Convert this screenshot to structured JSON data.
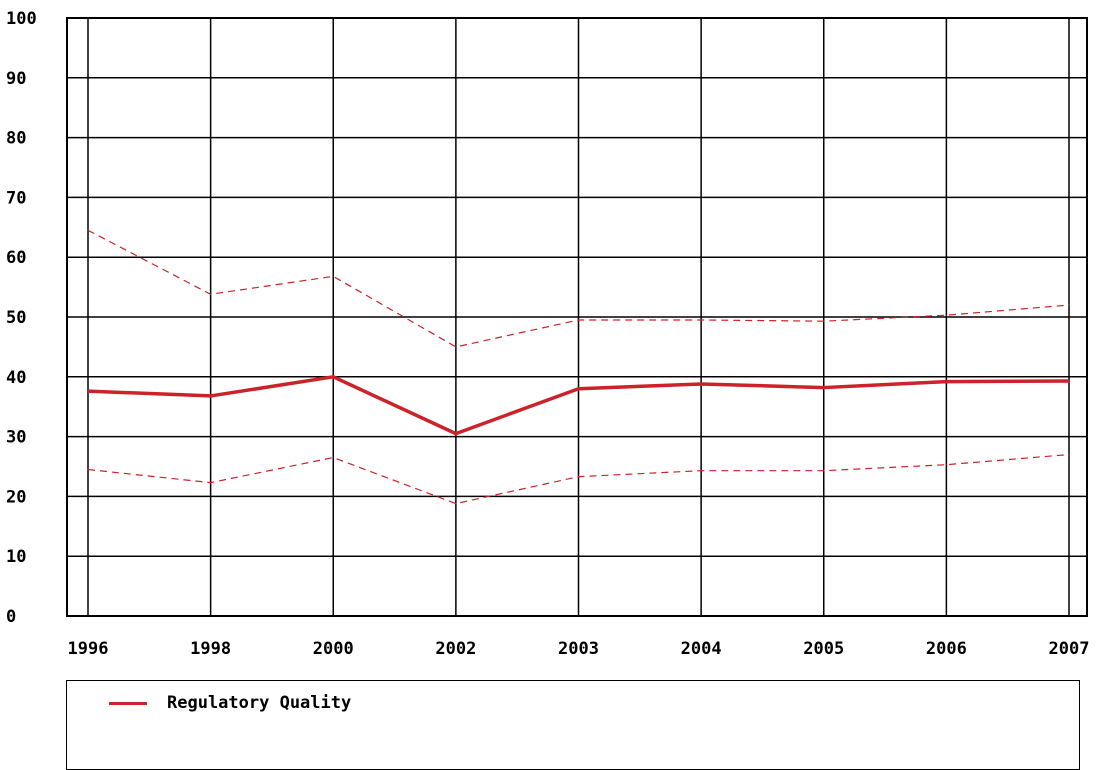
{
  "chart_data": {
    "type": "line",
    "title": "",
    "xlabel": "",
    "ylabel": "",
    "categories": [
      "1996",
      "1998",
      "2000",
      "2002",
      "2003",
      "2004",
      "2005",
      "2006",
      "2007"
    ],
    "ylim": [
      0,
      100
    ],
    "yticks": [
      "0",
      "10",
      "20",
      "30",
      "40",
      "50",
      "60",
      "70",
      "80",
      "90",
      "100"
    ],
    "grid": true,
    "legend_position": "bottom",
    "series": [
      {
        "name": "Regulatory Quality",
        "values": [
          37.6,
          36.8,
          40.0,
          30.5,
          38.0,
          38.8,
          38.2,
          39.2,
          39.3
        ],
        "color": "#cc2229",
        "style": "solid"
      },
      {
        "values": [
          64.5,
          53.8,
          56.8,
          45.0,
          49.5,
          49.5,
          49.3,
          50.3,
          52.0
        ],
        "color": "#cc2229",
        "style": "dashed"
      },
      {
        "values": [
          24.5,
          22.3,
          26.5,
          18.8,
          23.3,
          24.3,
          24.3,
          25.3,
          27.0
        ],
        "color": "#cc2229",
        "style": "dashed"
      }
    ]
  },
  "legend": {
    "label": "Regulatory Quality",
    "color": "#cc2229"
  }
}
